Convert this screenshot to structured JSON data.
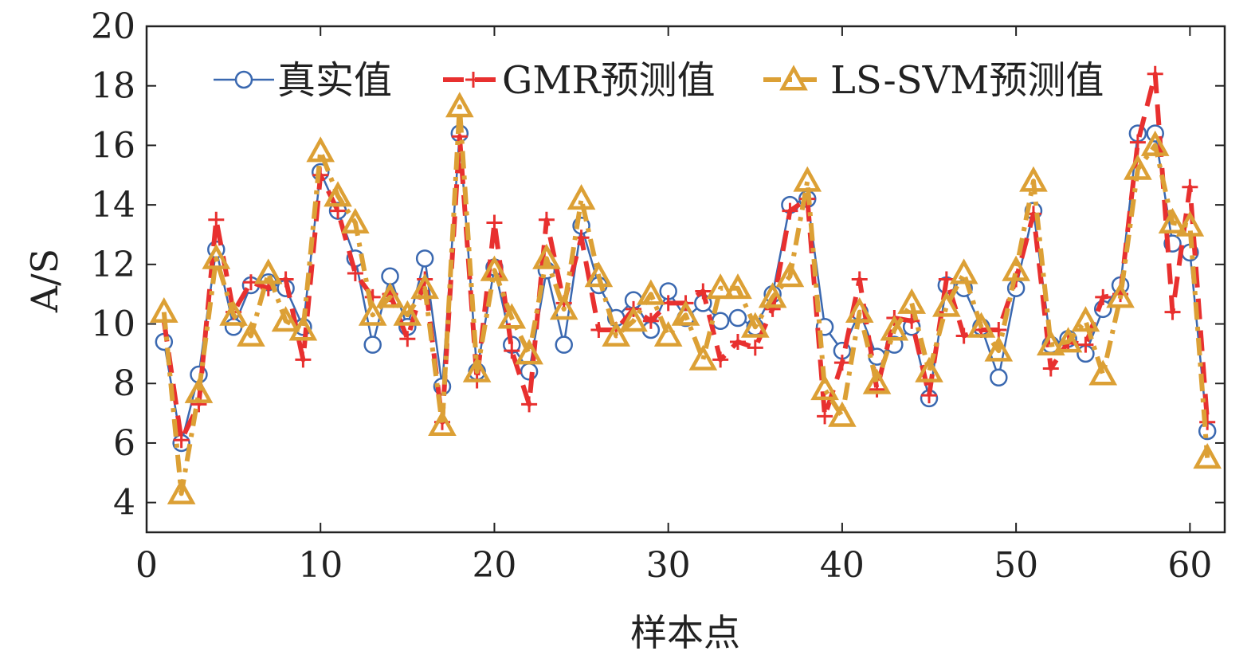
{
  "chart_data": {
    "type": "line",
    "title": "",
    "xlabel": "样本点",
    "ylabel": "A/S",
    "xlim": [
      0,
      62
    ],
    "ylim": [
      3,
      20
    ],
    "x_ticks": [
      0,
      10,
      20,
      30,
      40,
      50,
      60
    ],
    "y_ticks": [
      4,
      6,
      8,
      10,
      12,
      14,
      16,
      18,
      20
    ],
    "grid": false,
    "legend_position": "top",
    "x": [
      1,
      2,
      3,
      4,
      5,
      6,
      7,
      8,
      9,
      10,
      11,
      12,
      13,
      14,
      15,
      16,
      17,
      18,
      19,
      20,
      21,
      22,
      23,
      24,
      25,
      26,
      27,
      28,
      29,
      30,
      31,
      32,
      33,
      34,
      35,
      36,
      37,
      38,
      39,
      40,
      41,
      42,
      43,
      44,
      45,
      46,
      47,
      48,
      49,
      50,
      51,
      52,
      53,
      54,
      55,
      56,
      57,
      58,
      59,
      60,
      61
    ],
    "series": [
      {
        "name": "真实值",
        "color": "#3a68b0",
        "marker": "circle",
        "values": [
          9.4,
          6.0,
          8.3,
          12.5,
          9.9,
          11.3,
          11.4,
          11.2,
          9.9,
          15.1,
          13.8,
          12.2,
          9.3,
          11.6,
          9.9,
          12.2,
          7.9,
          16.4,
          8.4,
          11.9,
          9.3,
          8.4,
          11.8,
          9.3,
          13.3,
          11.3,
          10.2,
          10.8,
          9.8,
          11.1,
          10.2,
          10.7,
          10.1,
          10.2,
          9.9,
          11.0,
          14.0,
          14.2,
          9.9,
          9.1,
          10.4,
          8.9,
          9.3,
          9.9,
          7.5,
          11.3,
          11.2,
          9.9,
          8.2,
          11.2,
          13.8,
          9.3,
          9.5,
          9.0,
          10.5,
          11.3,
          16.4,
          16.4,
          12.7,
          12.4,
          6.4
        ]
      },
      {
        "name": "GMR预测值",
        "color": "#e8302f",
        "marker": "plus",
        "values": [
          10.1,
          6.1,
          7.3,
          13.5,
          10.4,
          11.4,
          11.2,
          11.5,
          8.8,
          15.0,
          13.8,
          11.7,
          10.9,
          11.0,
          9.5,
          11.5,
          6.7,
          16.3,
          8.1,
          13.4,
          9.1,
          7.3,
          13.5,
          10.7,
          12.9,
          9.8,
          9.8,
          10.5,
          10.1,
          10.7,
          10.7,
          11.1,
          8.8,
          9.4,
          9.2,
          10.5,
          13.8,
          14.2,
          6.9,
          8.7,
          11.5,
          7.8,
          10.2,
          10.1,
          7.6,
          11.5,
          9.6,
          9.8,
          9.8,
          11.5,
          13.7,
          8.5,
          9.4,
          9.3,
          10.9,
          11.0,
          16.1,
          18.4,
          10.4,
          14.6,
          6.7
        ]
      },
      {
        "name": "LS-SVM预测值",
        "color": "#dca035",
        "marker": "triangle",
        "values": [
          10.4,
          4.3,
          7.7,
          12.2,
          10.3,
          9.6,
          11.7,
          10.1,
          9.8,
          15.8,
          14.3,
          13.4,
          10.3,
          10.9,
          10.3,
          11.2,
          6.6,
          17.3,
          8.4,
          11.8,
          10.2,
          9.0,
          12.2,
          10.5,
          14.2,
          11.6,
          9.6,
          10.1,
          11.0,
          9.6,
          10.3,
          8.8,
          11.2,
          11.2,
          9.9,
          10.9,
          11.6,
          14.8,
          7.8,
          6.9,
          10.4,
          8.0,
          9.8,
          10.7,
          8.4,
          10.6,
          11.7,
          9.9,
          9.1,
          11.8,
          14.8,
          9.3,
          9.4,
          10.1,
          8.3,
          10.9,
          15.2,
          16.0,
          13.4,
          13.3,
          5.5
        ]
      }
    ]
  },
  "colors": {
    "axis": "#222222",
    "background": "#ffffff"
  }
}
